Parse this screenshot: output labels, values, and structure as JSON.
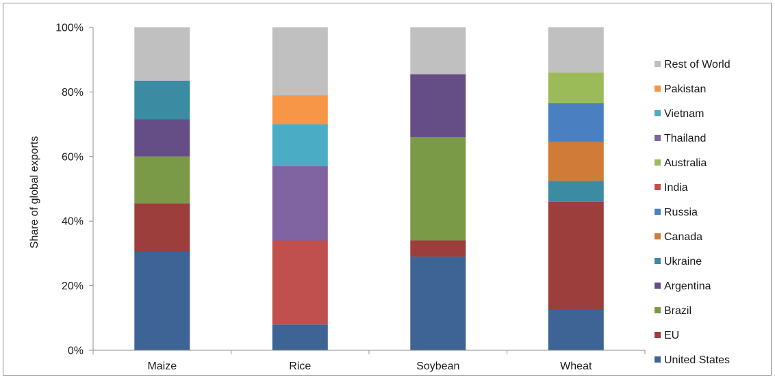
{
  "chart_data": {
    "type": "bar",
    "stacked": true,
    "normalized": true,
    "title": "",
    "xlabel": "",
    "ylabel": "Share of global exports",
    "ylim": [
      0,
      100
    ],
    "yticks": [
      "0%",
      "20%",
      "40%",
      "60%",
      "80%",
      "100%"
    ],
    "grid": false,
    "legend_position": "right",
    "categories": [
      "Maize",
      "Rice",
      "Soybean",
      "Wheat"
    ],
    "series": [
      {
        "name": "United States",
        "color": "#3e6496",
        "values": [
          30.5,
          8.0,
          29.0,
          12.5
        ]
      },
      {
        "name": "EU",
        "color": "#9b3e3c",
        "values": [
          15.0,
          0,
          5.0,
          33.5
        ]
      },
      {
        "name": "Brazil",
        "color": "#7b9a48",
        "values": [
          14.5,
          0,
          32.0,
          0
        ]
      },
      {
        "name": "Argentina",
        "color": "#654e86",
        "values": [
          11.5,
          0,
          19.5,
          0
        ]
      },
      {
        "name": "Ukraine",
        "color": "#3b8ba2",
        "values": [
          12.0,
          0,
          0,
          6.5
        ]
      },
      {
        "name": "Canada",
        "color": "#d17b38",
        "values": [
          0,
          0,
          0,
          12.0
        ]
      },
      {
        "name": "Russia",
        "color": "#4a80c2",
        "values": [
          0,
          0,
          0,
          12.0
        ]
      },
      {
        "name": "India",
        "color": "#c0504d",
        "values": [
          0,
          26.0,
          0,
          0
        ]
      },
      {
        "name": "Australia",
        "color": "#9bbb59",
        "values": [
          0,
          0,
          0,
          9.5
        ]
      },
      {
        "name": "Thailand",
        "color": "#8064a2",
        "values": [
          0,
          23.0,
          0,
          0
        ]
      },
      {
        "name": "Vietnam",
        "color": "#4bacc6",
        "values": [
          0,
          13.0,
          0,
          0
        ]
      },
      {
        "name": "Pakistan",
        "color": "#f79646",
        "values": [
          0,
          9.0,
          0,
          0
        ]
      },
      {
        "name": "Rest of World",
        "color": "#c0c0c0",
        "values": [
          16.5,
          21.0,
          14.5,
          14.0
        ]
      }
    ],
    "legend_order": [
      "Rest of World",
      "Pakistan",
      "Vietnam",
      "Thailand",
      "Australia",
      "India",
      "Russia",
      "Canada",
      "Ukraine",
      "Argentina",
      "Brazil",
      "EU",
      "United States"
    ]
  }
}
